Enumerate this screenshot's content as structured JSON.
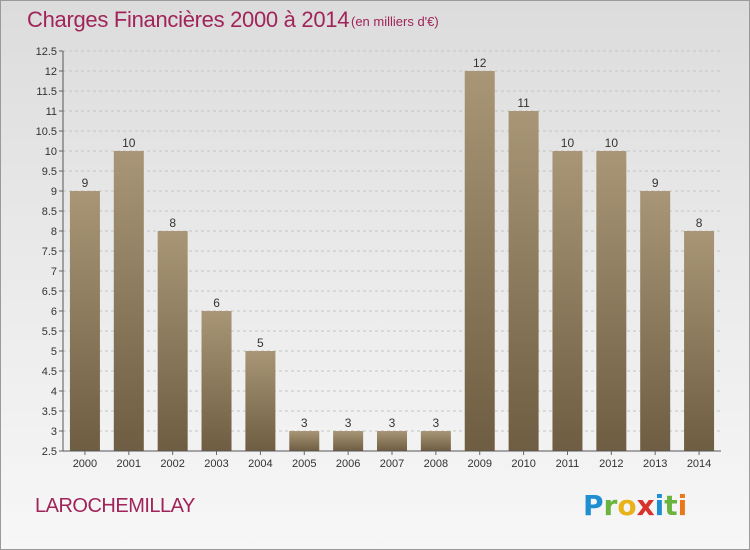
{
  "header": {
    "title": "Charges Financières 2000 à 2014",
    "unit": "(en milliers d'€)"
  },
  "footer": {
    "commune": "LAROCHEMILLAY",
    "logo": "Proxiti"
  },
  "colors": {
    "bar_top": "#a89676",
    "bar_bottom": "#6e5d42",
    "title": "#a0245a"
  },
  "chart_data": {
    "type": "bar",
    "title": "Charges Financières 2000 à 2014",
    "subtitle": "(en milliers d'€)",
    "xlabel": "",
    "ylabel": "",
    "categories": [
      "2000",
      "2001",
      "2002",
      "2003",
      "2004",
      "2005",
      "2006",
      "2007",
      "2008",
      "2009",
      "2010",
      "2011",
      "2012",
      "2013",
      "2014"
    ],
    "values": [
      9,
      10,
      8,
      6,
      5,
      3,
      3,
      3,
      3,
      12,
      11,
      10,
      10,
      9,
      8
    ],
    "data_labels": [
      "9",
      "10",
      "8",
      "6",
      "5",
      "3",
      "3",
      "3",
      "3",
      "12",
      "11",
      "10",
      "10",
      "9",
      "8"
    ],
    "ylim": [
      2.5,
      12.5
    ],
    "yticks": [
      "2.5",
      "3",
      "3.5",
      "4",
      "4.5",
      "5",
      "5.5",
      "6",
      "6.5",
      "7",
      "7.5",
      "8",
      "8.5",
      "9",
      "9.5",
      "10",
      "10.5",
      "11",
      "11.5",
      "12",
      "12.5"
    ],
    "grid": true
  }
}
